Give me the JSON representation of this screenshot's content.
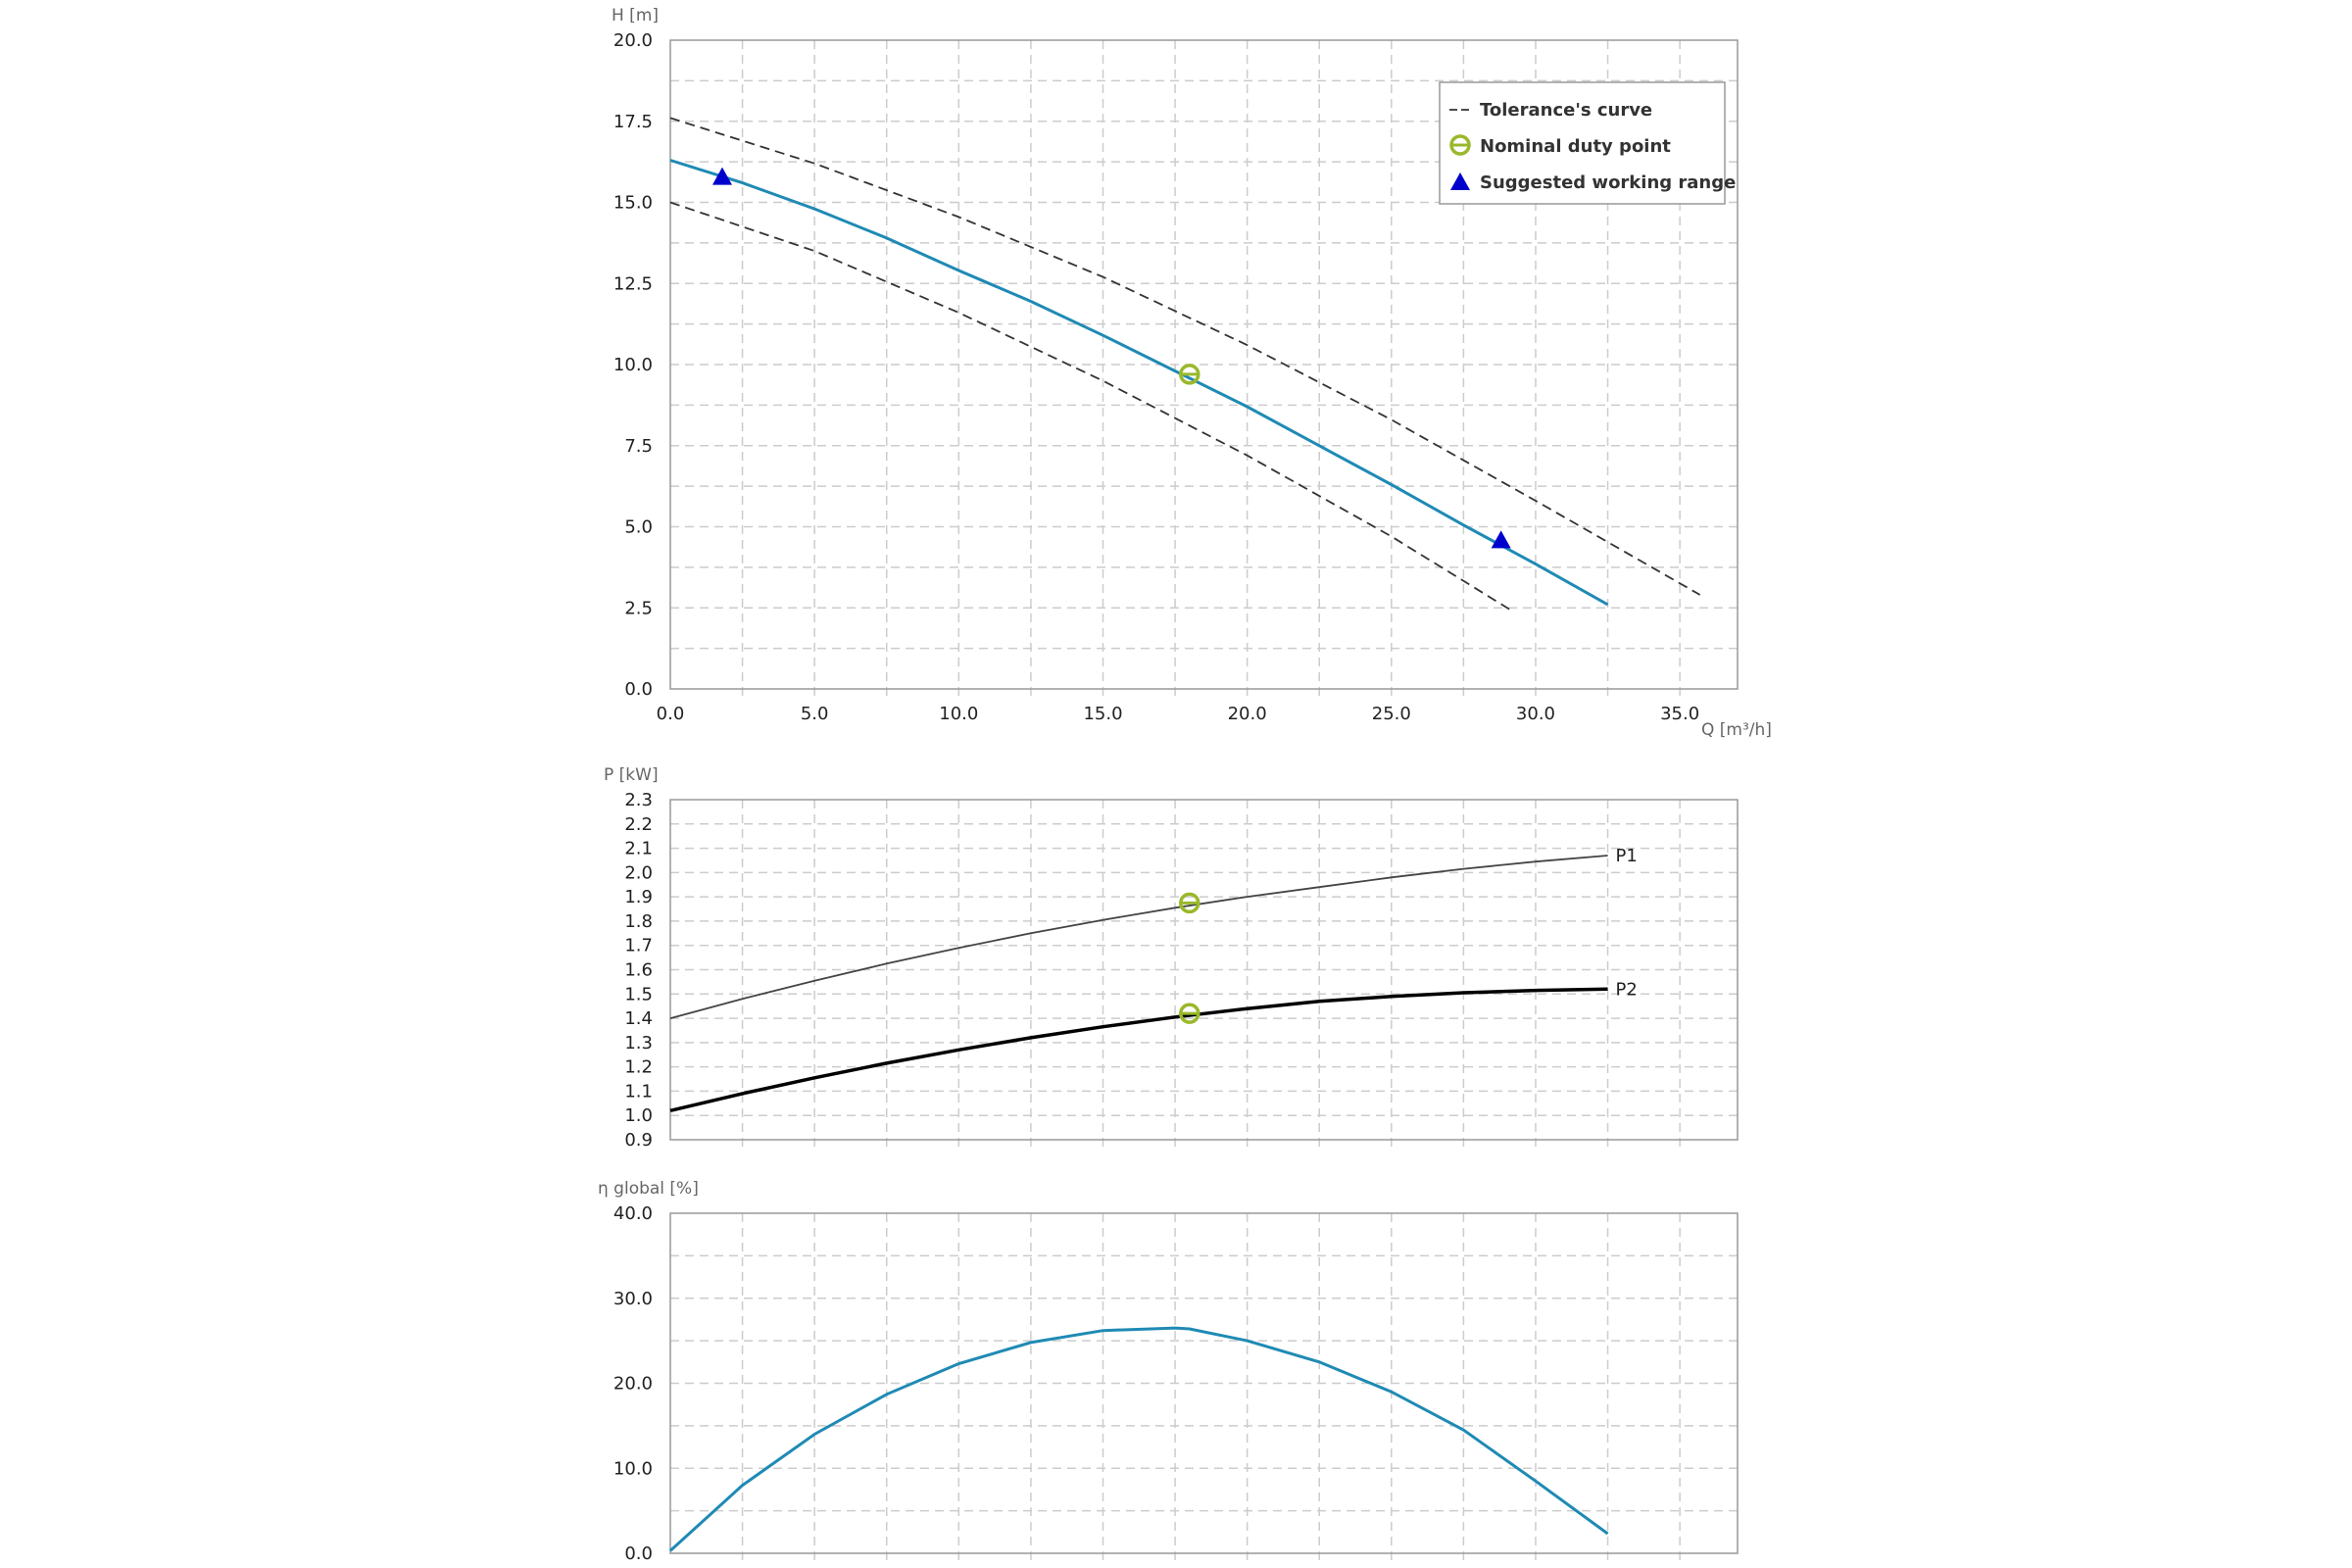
{
  "colors": {
    "head_curve": "#1f8ab4",
    "efficiency_curve": "#1f8ab4",
    "tolerance_curve": "#333333",
    "duty_point": "#9ab82b",
    "working_range": "#0000cc",
    "p1_curve": "#444444",
    "p2_curve": "#000000",
    "grid": "#cccccc",
    "frame": "#999999"
  },
  "chart_data": [
    {
      "type": "line",
      "id": "head",
      "xlabel": "Q [m³/h]",
      "ylabel": "H [m]",
      "xlim": [
        0,
        37
      ],
      "ylim": [
        0,
        20
      ],
      "xticks": [
        "0.0",
        "5.0",
        "10.0",
        "15.0",
        "20.0",
        "25.0",
        "30.0",
        "35.0"
      ],
      "yticks": [
        "0.0",
        "2.5",
        "5.0",
        "7.5",
        "10.0",
        "12.5",
        "15.0",
        "17.5",
        "20.0"
      ],
      "grid": true,
      "legend": {
        "position": "top-right",
        "entries": [
          "Tolerance's curve",
          "Nominal duty point",
          "Suggested working range"
        ]
      },
      "series": [
        {
          "role": "pump-curve",
          "x": [
            0,
            2.5,
            5,
            7.5,
            10,
            12.5,
            15,
            17.5,
            20,
            22.5,
            25,
            27.5,
            30,
            32.5
          ],
          "y": [
            16.3,
            15.6,
            14.8,
            13.9,
            12.9,
            11.95,
            10.9,
            9.8,
            8.7,
            7.5,
            6.3,
            5.05,
            3.85,
            2.6
          ]
        },
        {
          "role": "tolerance-upper",
          "x": [
            0,
            5,
            10,
            15,
            20,
            25,
            30,
            35.7
          ],
          "y": [
            17.6,
            16.2,
            14.55,
            12.7,
            10.6,
            8.3,
            5.8,
            2.9
          ]
        },
        {
          "role": "tolerance-lower",
          "x": [
            0,
            5,
            10,
            15,
            20,
            25,
            29.2
          ],
          "y": [
            15.0,
            13.5,
            11.6,
            9.5,
            7.2,
            4.7,
            2.4
          ]
        }
      ],
      "duty_points": [
        {
          "x": 18,
          "y": 9.7
        }
      ],
      "working_range": [
        {
          "x": 1.8,
          "y": 15.75
        },
        {
          "x": 28.8,
          "y": 4.55
        }
      ]
    },
    {
      "type": "line",
      "id": "power",
      "xlabel": "",
      "ylabel": "P [kW]",
      "xlim": [
        0,
        37
      ],
      "ylim": [
        0.9,
        2.3
      ],
      "yticks": [
        "0.9",
        "1.0",
        "1.1",
        "1.2",
        "1.3",
        "1.4",
        "1.5",
        "1.6",
        "1.7",
        "1.8",
        "1.9",
        "2.0",
        "2.1",
        "2.2",
        "2.3"
      ],
      "grid": true,
      "series": [
        {
          "name": "P1",
          "x": [
            0,
            2.5,
            5,
            7.5,
            10,
            12.5,
            15,
            17.5,
            20,
            22.5,
            25,
            27.5,
            30,
            32.5
          ],
          "y": [
            1.4,
            1.48,
            1.555,
            1.625,
            1.69,
            1.75,
            1.805,
            1.855,
            1.9,
            1.94,
            1.98,
            2.015,
            2.045,
            2.07
          ]
        },
        {
          "name": "P2",
          "x": [
            0,
            2.5,
            5,
            7.5,
            10,
            12.5,
            15,
            17.5,
            20,
            22.5,
            25,
            27.5,
            30,
            32.5
          ],
          "y": [
            1.02,
            1.09,
            1.155,
            1.215,
            1.27,
            1.32,
            1.365,
            1.405,
            1.44,
            1.47,
            1.49,
            1.505,
            1.515,
            1.52
          ]
        }
      ],
      "duty_points": [
        {
          "x": 18,
          "y": 1.875
        },
        {
          "x": 18,
          "y": 1.42
        }
      ]
    },
    {
      "type": "line",
      "id": "efficiency",
      "xlabel": "",
      "ylabel": "η global [%]",
      "xlim": [
        0,
        37
      ],
      "ylim": [
        0,
        40
      ],
      "yticks": [
        "0.0",
        "10.0",
        "20.0",
        "30.0",
        "40.0"
      ],
      "grid": true,
      "series": [
        {
          "x": [
            0,
            2.5,
            5,
            7.5,
            10,
            12.5,
            15,
            17.5,
            18,
            20,
            22.5,
            25,
            27.5,
            30,
            32.5
          ],
          "y": [
            0.3,
            8,
            14,
            18.7,
            22.3,
            24.8,
            26.2,
            26.5,
            26.4,
            25,
            22.5,
            19,
            14.5,
            8.5,
            2.3
          ]
        }
      ]
    }
  ]
}
